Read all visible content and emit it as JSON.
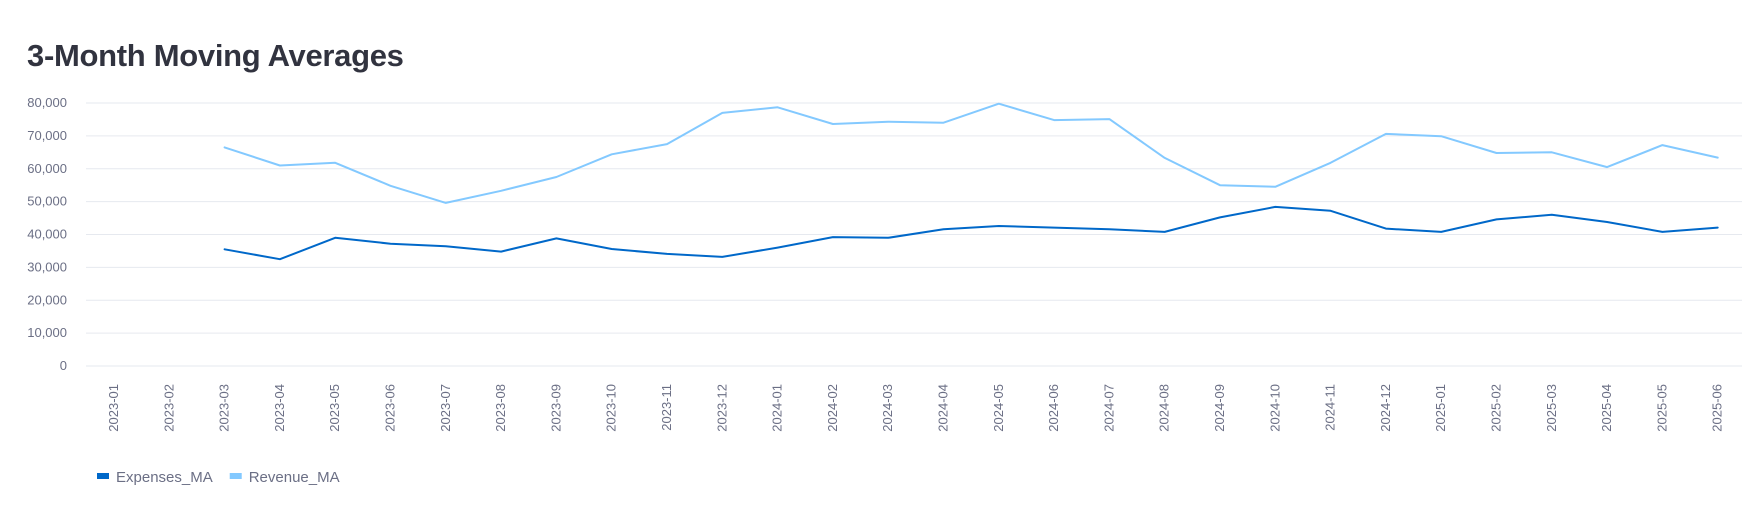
{
  "chart_data": {
    "type": "line",
    "title": "3-Month Moving Averages",
    "xlabel": "",
    "ylabel": "",
    "ylim": [
      0,
      80000
    ],
    "y_ticks": [
      0,
      10000,
      20000,
      30000,
      40000,
      50000,
      60000,
      70000,
      80000
    ],
    "y_tick_labels": [
      "0",
      "10,000",
      "20,000",
      "30,000",
      "40,000",
      "50,000",
      "60,000",
      "70,000",
      "80,000"
    ],
    "grid": true,
    "legend_position": "bottom-left",
    "x": [
      "2023-01",
      "2023-02",
      "2023-03",
      "2023-04",
      "2023-05",
      "2023-06",
      "2023-07",
      "2023-08",
      "2023-09",
      "2023-10",
      "2023-11",
      "2023-12",
      "2024-01",
      "2024-02",
      "2024-03",
      "2024-04",
      "2024-05",
      "2024-06",
      "2024-07",
      "2024-08",
      "2024-09",
      "2024-10",
      "2024-11",
      "2024-12",
      "2025-01",
      "2025-02",
      "2025-03",
      "2025-04",
      "2025-05",
      "2025-06"
    ],
    "series": [
      {
        "name": "Expenses_MA",
        "color": "#0068c9",
        "values": [
          null,
          null,
          35500,
          32500,
          39000,
          37200,
          36400,
          34800,
          38800,
          35600,
          34100,
          33200,
          36000,
          39200,
          39000,
          41600,
          42600,
          42100,
          41600,
          40800,
          45200,
          48400,
          47200,
          41800,
          40800,
          44600,
          46000,
          43800,
          40800,
          42100
        ]
      },
      {
        "name": "Revenue_MA",
        "color": "#83c9ff",
        "values": [
          null,
          null,
          66500,
          61000,
          61800,
          54800,
          49600,
          53300,
          57500,
          64400,
          67500,
          77000,
          78700,
          73600,
          74300,
          74000,
          79800,
          74800,
          75100,
          63300,
          55000,
          54500,
          61800,
          70600,
          69900,
          64800,
          65000,
          60500,
          67200,
          63400
        ]
      }
    ]
  }
}
